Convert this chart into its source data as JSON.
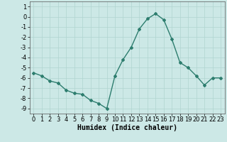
{
  "x": [
    0,
    1,
    2,
    3,
    4,
    5,
    6,
    7,
    8,
    9,
    10,
    11,
    12,
    13,
    14,
    15,
    16,
    17,
    18,
    19,
    20,
    21,
    22,
    23
  ],
  "y": [
    -5.5,
    -5.8,
    -6.3,
    -6.5,
    -7.2,
    -7.5,
    -7.6,
    -8.2,
    -8.5,
    -9.0,
    -5.8,
    -4.2,
    -3.0,
    -1.2,
    -0.2,
    0.3,
    -0.3,
    -2.2,
    -4.5,
    -5.0,
    -5.8,
    -6.7,
    -6.0,
    -6.0
  ],
  "line_color": "#2d7d6e",
  "marker": "D",
  "marker_size": 2.0,
  "xlabel": "Humidex (Indice chaleur)",
  "ylim": [
    -9.5,
    1.5
  ],
  "xlim": [
    -0.5,
    23.5
  ],
  "yticks": [
    1,
    0,
    -1,
    -2,
    -3,
    -4,
    -5,
    -6,
    -7,
    -8,
    -9
  ],
  "xticks": [
    0,
    1,
    2,
    3,
    4,
    5,
    6,
    7,
    8,
    9,
    10,
    11,
    12,
    13,
    14,
    15,
    16,
    17,
    18,
    19,
    20,
    21,
    22,
    23
  ],
  "bg_color": "#cce8e6",
  "grid_color": "#b0d4d0",
  "line_width": 1.0,
  "xlabel_fontsize": 7,
  "tick_fontsize": 6
}
